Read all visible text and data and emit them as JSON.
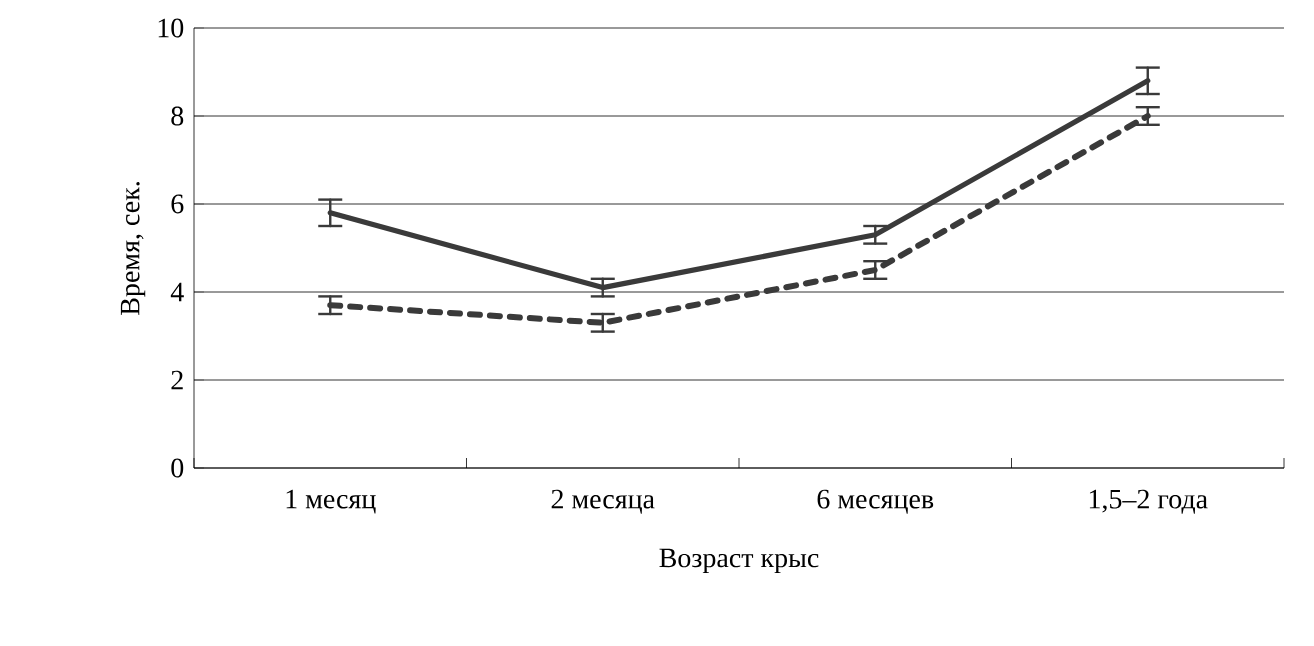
{
  "chart_data": {
    "type": "line",
    "xlabel": "Возраст крыс",
    "ylabel": "Время, сек.",
    "categories": [
      "1 месяц",
      "2 месяца",
      "6 месяцев",
      "1,5–2 года"
    ],
    "series": [
      {
        "color": "#3a3a3a",
        "line_style": "solid",
        "values": [
          5.8,
          4.1,
          5.3,
          8.8
        ],
        "errors": [
          0.3,
          0.2,
          0.2,
          0.3
        ]
      },
      {
        "color": "#3a3a3a",
        "line_style": "dotted",
        "values": [
          3.7,
          3.3,
          4.5,
          8.0
        ],
        "errors": [
          0.2,
          0.2,
          0.2,
          0.2
        ]
      }
    ],
    "ylim": [
      0,
      10
    ],
    "yticks": [
      0,
      2,
      4,
      6,
      8,
      10
    ],
    "grid": "y",
    "marker": "none"
  }
}
